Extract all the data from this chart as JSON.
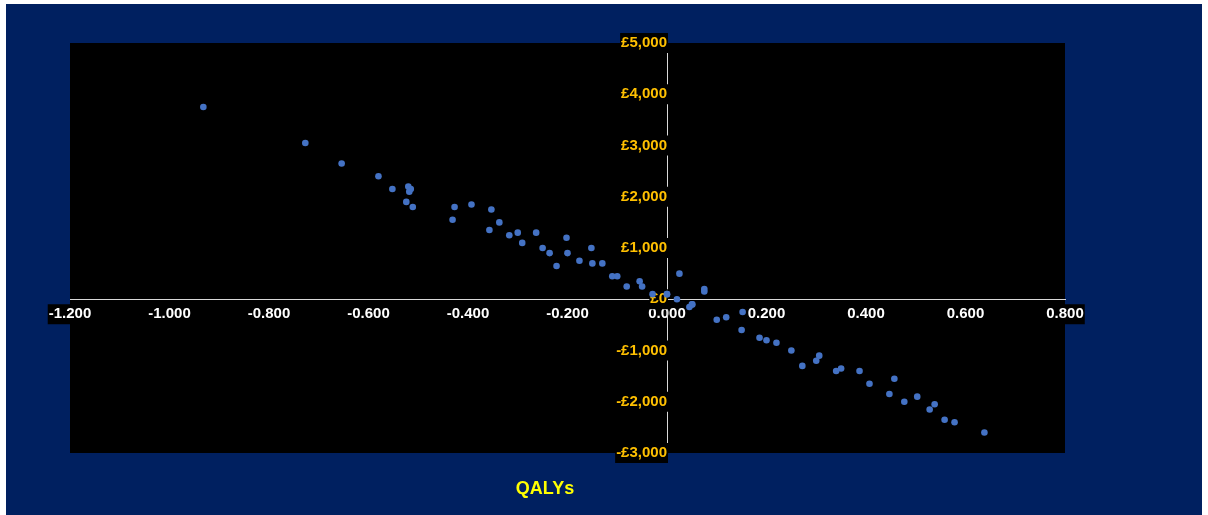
{
  "chart_data": {
    "type": "scatter",
    "xlabel": "QALYs",
    "xlim": [
      -1.2,
      0.8
    ],
    "ylim": [
      -3000,
      5000
    ],
    "xticks": [
      {
        "value": -1.2,
        "label": "-1.200"
      },
      {
        "value": -1,
        "label": "-1.000"
      },
      {
        "value": -0.8,
        "label": "-0.800"
      },
      {
        "value": -0.6,
        "label": "-0.600"
      },
      {
        "value": -0.4,
        "label": "-0.400"
      },
      {
        "value": -0.2,
        "label": "-0.200"
      },
      {
        "value": 0,
        "label": "0.000"
      },
      {
        "value": 0.2,
        "label": "0.200"
      },
      {
        "value": 0.4,
        "label": "0.400"
      },
      {
        "value": 0.6,
        "label": "0.600"
      },
      {
        "value": 0.8,
        "label": "0.800"
      }
    ],
    "yticks": [
      {
        "value": -3000,
        "label": "-£3,000"
      },
      {
        "value": -2000,
        "label": "-£2,000"
      },
      {
        "value": -1000,
        "label": "-£1,000"
      },
      {
        "value": 0,
        "label": "£0"
      },
      {
        "value": 1000,
        "label": "£1,000"
      },
      {
        "value": 2000,
        "label": "£2,000"
      },
      {
        "value": 3000,
        "label": "£3,000"
      },
      {
        "value": 4000,
        "label": "£4,000"
      },
      {
        "value": 5000,
        "label": "£5,000"
      }
    ],
    "grid": false,
    "legend": false,
    "marker": "circle",
    "series": [
      {
        "color": "#4472c4",
        "x": [
          -0.932,
          -0.727,
          -0.654,
          -0.58,
          -0.552,
          -0.52,
          -0.515,
          -0.518,
          -0.524,
          -0.511,
          -0.427,
          -0.431,
          -0.393,
          -0.353,
          -0.357,
          -0.337,
          -0.317,
          -0.3,
          -0.291,
          -0.263,
          -0.25,
          -0.236,
          -0.222,
          -0.202,
          -0.2,
          -0.176,
          -0.152,
          -0.15,
          -0.13,
          -0.11,
          -0.1,
          -0.081,
          -0.055,
          -0.05,
          -0.029,
          0,
          0,
          0.02,
          0.025,
          0.045,
          0.05,
          0.051,
          0.075,
          0.075,
          0.1,
          0.119,
          0.15,
          0.152,
          0.186,
          0.2,
          0.22,
          0.25,
          0.272,
          0.3,
          0.306,
          0.34,
          0.35,
          0.387,
          0.407,
          0.447,
          0.457,
          0.477,
          0.503,
          0.528,
          0.538,
          0.558,
          0.578,
          0.638
        ],
        "values": [
          3750,
          3050,
          2650,
          2400,
          2150,
          2200,
          2150,
          2100,
          1900,
          1800,
          1800,
          1550,
          1850,
          1750,
          1350,
          1500,
          1250,
          1300,
          1100,
          1300,
          1000,
          900,
          650,
          1200,
          900,
          750,
          1000,
          700,
          700,
          450,
          450,
          250,
          350,
          250,
          100,
          100,
          100,
          0,
          500,
          -150,
          -100,
          -100,
          150,
          200,
          -400,
          -350,
          -600,
          -250,
          -750,
          -800,
          -850,
          -1000,
          -1300,
          -1200,
          -1100,
          -1400,
          -1350,
          -1400,
          -1650,
          -1850,
          -1550,
          -2000,
          -1900,
          -2150,
          -2050,
          -2350,
          -2400,
          -2600
        ]
      }
    ]
  }
}
